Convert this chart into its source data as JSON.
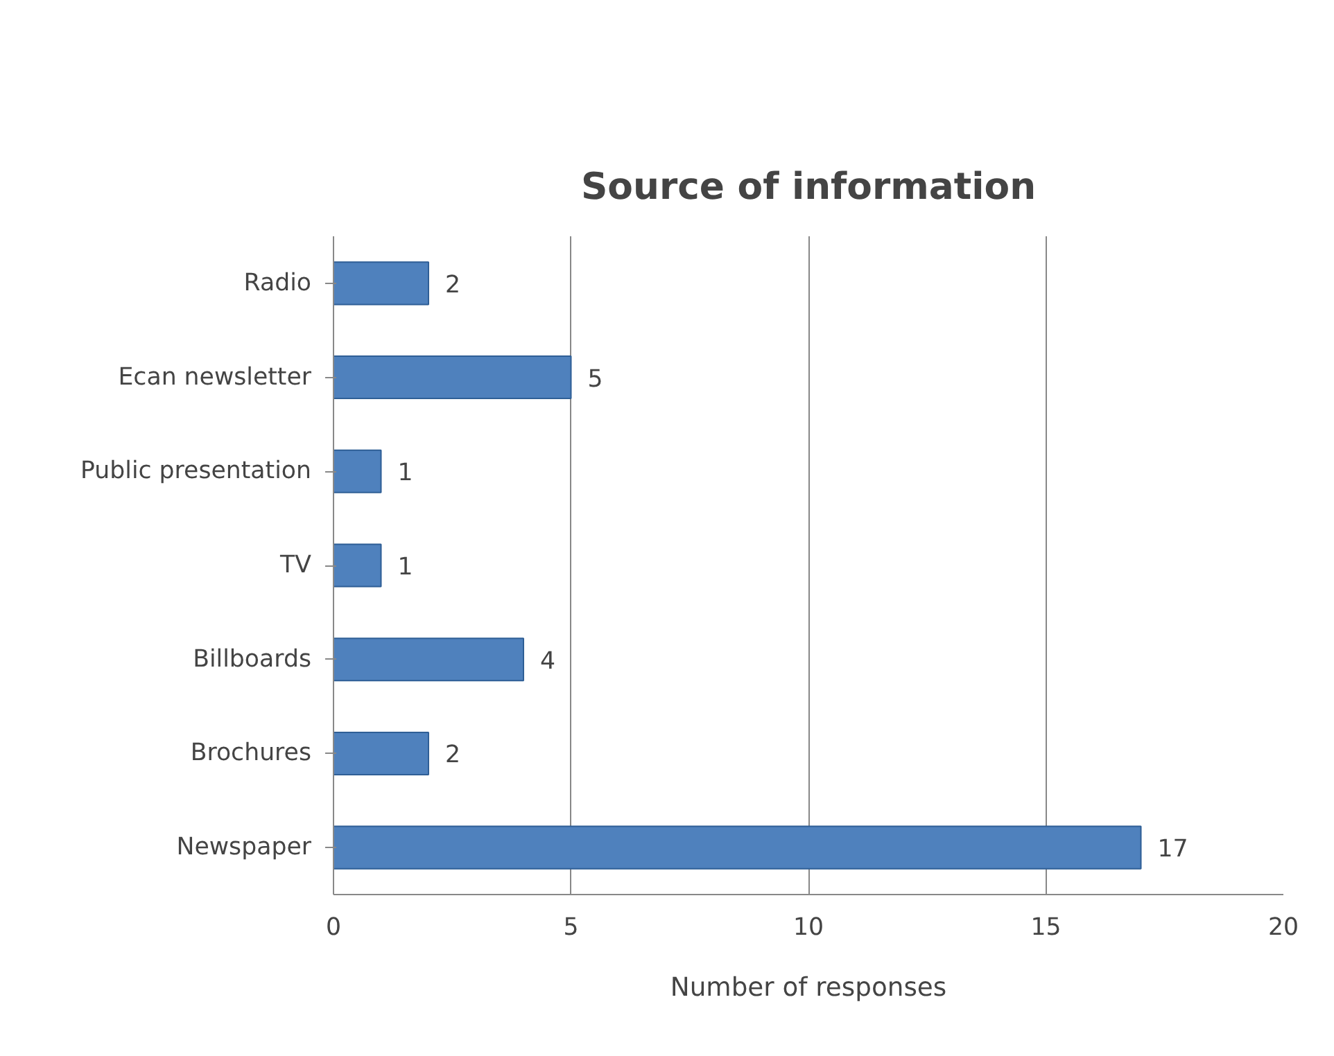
{
  "chart_data": {
    "type": "bar",
    "orientation": "horizontal",
    "title": "Source of information",
    "xlabel": "Number of responses",
    "categories": [
      "Radio",
      "Ecan newsletter",
      "Public presentation",
      "TV",
      "Billboards",
      "Brochures",
      "Newspaper"
    ],
    "values": [
      2,
      5,
      1,
      1,
      4,
      2,
      17
    ],
    "color": "#4f81bd",
    "xlim": [
      0,
      20
    ],
    "xticks": [
      0,
      5,
      10,
      15,
      20
    ],
    "grid": "x",
    "data_labels": true
  }
}
